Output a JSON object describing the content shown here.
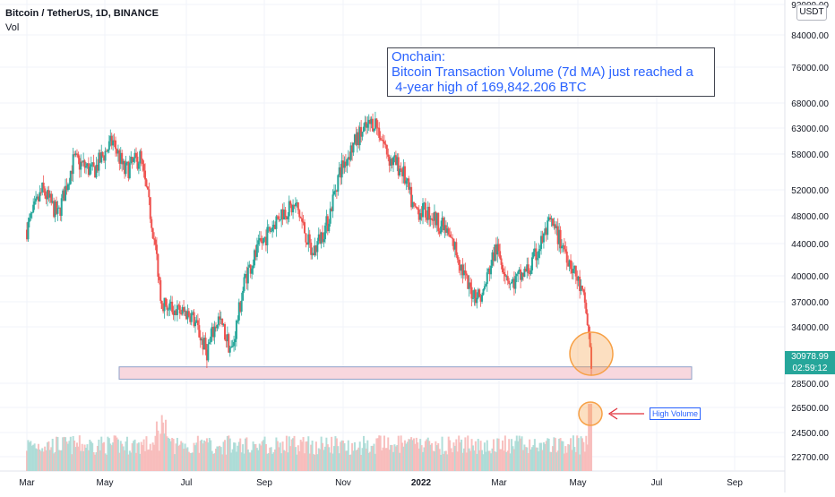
{
  "header": {
    "title": "Bitcoin / TetherUS, 1D, BINANCE",
    "volume_label": "Vol",
    "currency_button": "USDT"
  },
  "annotations": {
    "note_lines": [
      "Onchain:",
      "Bitcoin Transaction Volume (7d MA) just reached a",
      " 4-year high of 169,842.206 BTC"
    ],
    "high_volume_label": "High Volume"
  },
  "last_price": {
    "value": "30978.99",
    "countdown": "02:59:12"
  },
  "colors": {
    "up": "#26a69a",
    "down": "#ef5350",
    "zone_fill": "#f8d7de",
    "zone_border": "#8fa0c8",
    "highlight_circle": "#f7a045",
    "arrow": "#e0323b",
    "grid": "#f0f3fa",
    "text": "#131722"
  },
  "chart_data": {
    "type": "candlestick",
    "title": "Bitcoin / TetherUS, 1D, BINANCE",
    "x_ticks": [
      "Mar",
      "May",
      "Jul",
      "Sep",
      "Nov",
      "2022",
      "Mar",
      "May",
      "Jul",
      "Sep"
    ],
    "y_ticks": [
      92000,
      84000,
      76000,
      68000,
      63000,
      58000,
      52000,
      48000,
      44000,
      40000,
      37000,
      34000,
      28500,
      26500,
      24500,
      22700
    ],
    "price_series": [
      {
        "month": 2.0,
        "price": 46000
      },
      {
        "month": 2.4,
        "price": 52000
      },
      {
        "month": 2.8,
        "price": 48000
      },
      {
        "month": 3.2,
        "price": 57000
      },
      {
        "month": 3.7,
        "price": 55000
      },
      {
        "month": 4.2,
        "price": 60500
      },
      {
        "month": 4.5,
        "price": 55000
      },
      {
        "month": 4.9,
        "price": 57500
      },
      {
        "month": 5.2,
        "price": 47000
      },
      {
        "month": 5.45,
        "price": 37000
      },
      {
        "month": 5.8,
        "price": 36000
      },
      {
        "month": 6.2,
        "price": 35500
      },
      {
        "month": 6.6,
        "price": 31500
      },
      {
        "month": 6.9,
        "price": 35000
      },
      {
        "month": 7.25,
        "price": 31500
      },
      {
        "month": 7.6,
        "price": 40000
      },
      {
        "month": 8.0,
        "price": 44000
      },
      {
        "month": 8.5,
        "price": 48500
      },
      {
        "month": 8.9,
        "price": 49500
      },
      {
        "month": 9.3,
        "price": 42500
      },
      {
        "month": 9.7,
        "price": 47000
      },
      {
        "month": 10.0,
        "price": 55000
      },
      {
        "month": 10.5,
        "price": 61500
      },
      {
        "month": 10.9,
        "price": 64500
      },
      {
        "month": 11.3,
        "price": 57000
      },
      {
        "month": 11.6,
        "price": 55500
      },
      {
        "month": 11.9,
        "price": 49000
      },
      {
        "month": 12.3,
        "price": 48500
      },
      {
        "month": 12.7,
        "price": 46000
      },
      {
        "month": 13.0,
        "price": 43000
      },
      {
        "month": 13.3,
        "price": 38500
      },
      {
        "month": 13.65,
        "price": 37500
      },
      {
        "month": 14.0,
        "price": 43500
      },
      {
        "month": 14.4,
        "price": 39000
      },
      {
        "month": 14.9,
        "price": 41000
      },
      {
        "month": 15.4,
        "price": 47000
      },
      {
        "month": 15.8,
        "price": 43000
      },
      {
        "month": 16.1,
        "price": 39500
      },
      {
        "month": 16.3,
        "price": 36500
      },
      {
        "month": 16.45,
        "price": 30500
      }
    ],
    "support_zone": {
      "low": 28900,
      "high": 30100
    },
    "annotation_text": [
      "Onchain:",
      "Bitcoin Transaction Volume (7d MA) just reached a",
      " 4-year high of 169,842.206 BTC"
    ],
    "grid": true
  }
}
